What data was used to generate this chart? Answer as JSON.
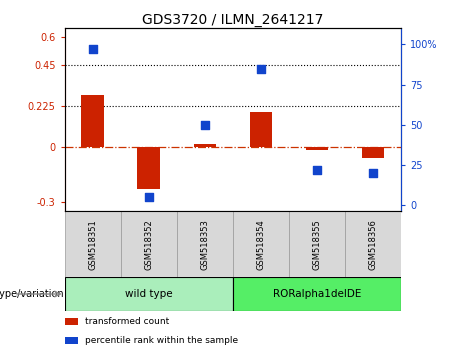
{
  "title": "GDS3720 / ILMN_2641217",
  "samples": [
    "GSM518351",
    "GSM518352",
    "GSM518353",
    "GSM518354",
    "GSM518355",
    "GSM518356"
  ],
  "red_values": [
    0.285,
    -0.23,
    0.015,
    0.19,
    -0.018,
    -0.06
  ],
  "blue_values_pct": [
    97,
    5,
    50,
    85,
    22,
    20
  ],
  "ylim_left": [
    -0.35,
    0.65
  ],
  "ylim_right": [
    -3.5,
    110
  ],
  "yticks_left": [
    -0.3,
    0.0,
    0.225,
    0.45,
    0.6
  ],
  "yticks_left_labels": [
    "-0.3",
    "0",
    "0.225",
    "0.45",
    "0.6"
  ],
  "yticks_right": [
    0,
    25,
    50,
    75,
    100
  ],
  "yticks_right_labels": [
    "0",
    "25",
    "50",
    "75",
    "100%"
  ],
  "hlines": [
    0.225,
    0.45
  ],
  "red_color": "#cc2200",
  "blue_color": "#1144cc",
  "zero_line_color": "#cc3300",
  "zero_line_style": "-.",
  "hline_style": ":",
  "hline_color": "black",
  "bar_width": 0.4,
  "marker_size": 6,
  "groups": [
    {
      "label": "wild type",
      "samples": [
        0,
        1,
        2
      ],
      "color": "#aaeebb"
    },
    {
      "label": "RORalpha1delDE",
      "samples": [
        3,
        4,
        5
      ],
      "color": "#55ee66"
    }
  ],
  "group_label_prefix": "genotype/variation",
  "legend_items": [
    {
      "label": "transformed count",
      "color": "#cc2200"
    },
    {
      "label": "percentile rank within the sample",
      "color": "#1144cc"
    }
  ],
  "tick_label_fontsize": 7,
  "title_fontsize": 10
}
